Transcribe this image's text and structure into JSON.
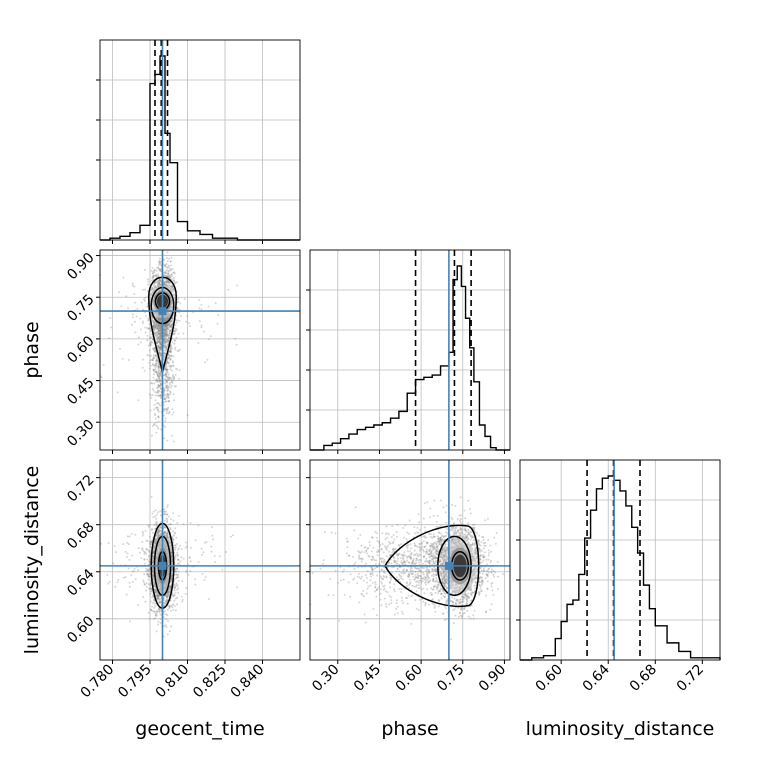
{
  "chart_data": {
    "type": "corner",
    "parameters": [
      "geocent_time",
      "phase",
      "luminosity_distance"
    ],
    "truths": [
      0.8,
      0.7,
      0.645
    ],
    "grid": true,
    "truth_color": "#4682b4",
    "axes": {
      "geocent_time": {
        "label": "geocent_time",
        "range": [
          0.775,
          0.855
        ],
        "ticks": [
          0.78,
          0.795,
          0.81,
          0.825,
          0.84
        ],
        "tick_labels": [
          "0.780",
          "0.795",
          "0.810",
          "0.825",
          "0.840"
        ]
      },
      "phase": {
        "label": "phase",
        "range": [
          0.2,
          0.92
        ],
        "ticks": [
          0.3,
          0.45,
          0.6,
          0.75,
          0.9
        ],
        "tick_labels": [
          "0.30",
          "0.45",
          "0.60",
          "0.75",
          "0.90"
        ]
      },
      "luminosity_distance": {
        "label": "luminosity_distance",
        "range": [
          0.565,
          0.735
        ],
        "ticks": [
          0.6,
          0.64,
          0.68,
          0.72
        ],
        "tick_labels": [
          "0.60",
          "0.64",
          "0.68",
          "0.72"
        ]
      }
    },
    "marginals": [
      {
        "parameter": "geocent_time",
        "bin_edges": [
          0.775,
          0.779,
          0.783,
          0.787,
          0.791,
          0.795,
          0.797,
          0.799,
          0.801,
          0.803,
          0.806,
          0.81,
          0.815,
          0.82,
          0.825,
          0.83,
          0.855
        ],
        "counts": [
          0,
          1,
          2,
          4,
          8,
          85,
          90,
          100,
          58,
          42,
          10,
          5,
          3,
          1,
          1,
          0
        ],
        "quantiles": [
          0.797,
          0.7995,
          0.802
        ]
      },
      {
        "parameter": "phase",
        "bin_edges": [
          0.2,
          0.25,
          0.28,
          0.31,
          0.34,
          0.37,
          0.4,
          0.43,
          0.46,
          0.49,
          0.52,
          0.55,
          0.58,
          0.61,
          0.64,
          0.67,
          0.7,
          0.715,
          0.73,
          0.745,
          0.76,
          0.775,
          0.79,
          0.81,
          0.83,
          0.85,
          0.87,
          0.9,
          0.92
        ],
        "counts": [
          0,
          2,
          3,
          5,
          7,
          9,
          10,
          11,
          12,
          14,
          17,
          25,
          31,
          32,
          33,
          37,
          43,
          75,
          81,
          72,
          58,
          45,
          30,
          11,
          6,
          1,
          0,
          0
        ],
        "quantiles": [
          0.58,
          0.72,
          0.78
        ]
      },
      {
        "parameter": "luminosity_distance",
        "bin_edges": [
          0.565,
          0.575,
          0.585,
          0.595,
          0.6,
          0.605,
          0.61,
          0.615,
          0.62,
          0.625,
          0.63,
          0.635,
          0.64,
          0.645,
          0.65,
          0.655,
          0.66,
          0.665,
          0.67,
          0.675,
          0.68,
          0.69,
          0.7,
          0.71,
          0.735
        ],
        "counts": [
          0,
          1,
          2,
          10,
          18,
          26,
          28,
          40,
          57,
          70,
          80,
          85,
          86,
          84,
          79,
          72,
          62,
          50,
          35,
          24,
          16,
          8,
          4,
          1
        ],
        "quantiles": [
          0.622,
          0.6445,
          0.667
        ]
      }
    ],
    "pairs": [
      {
        "x": "geocent_time",
        "y": "phase"
      },
      {
        "x": "geocent_time",
        "y": "luminosity_distance"
      },
      {
        "x": "phase",
        "y": "luminosity_distance"
      }
    ]
  }
}
